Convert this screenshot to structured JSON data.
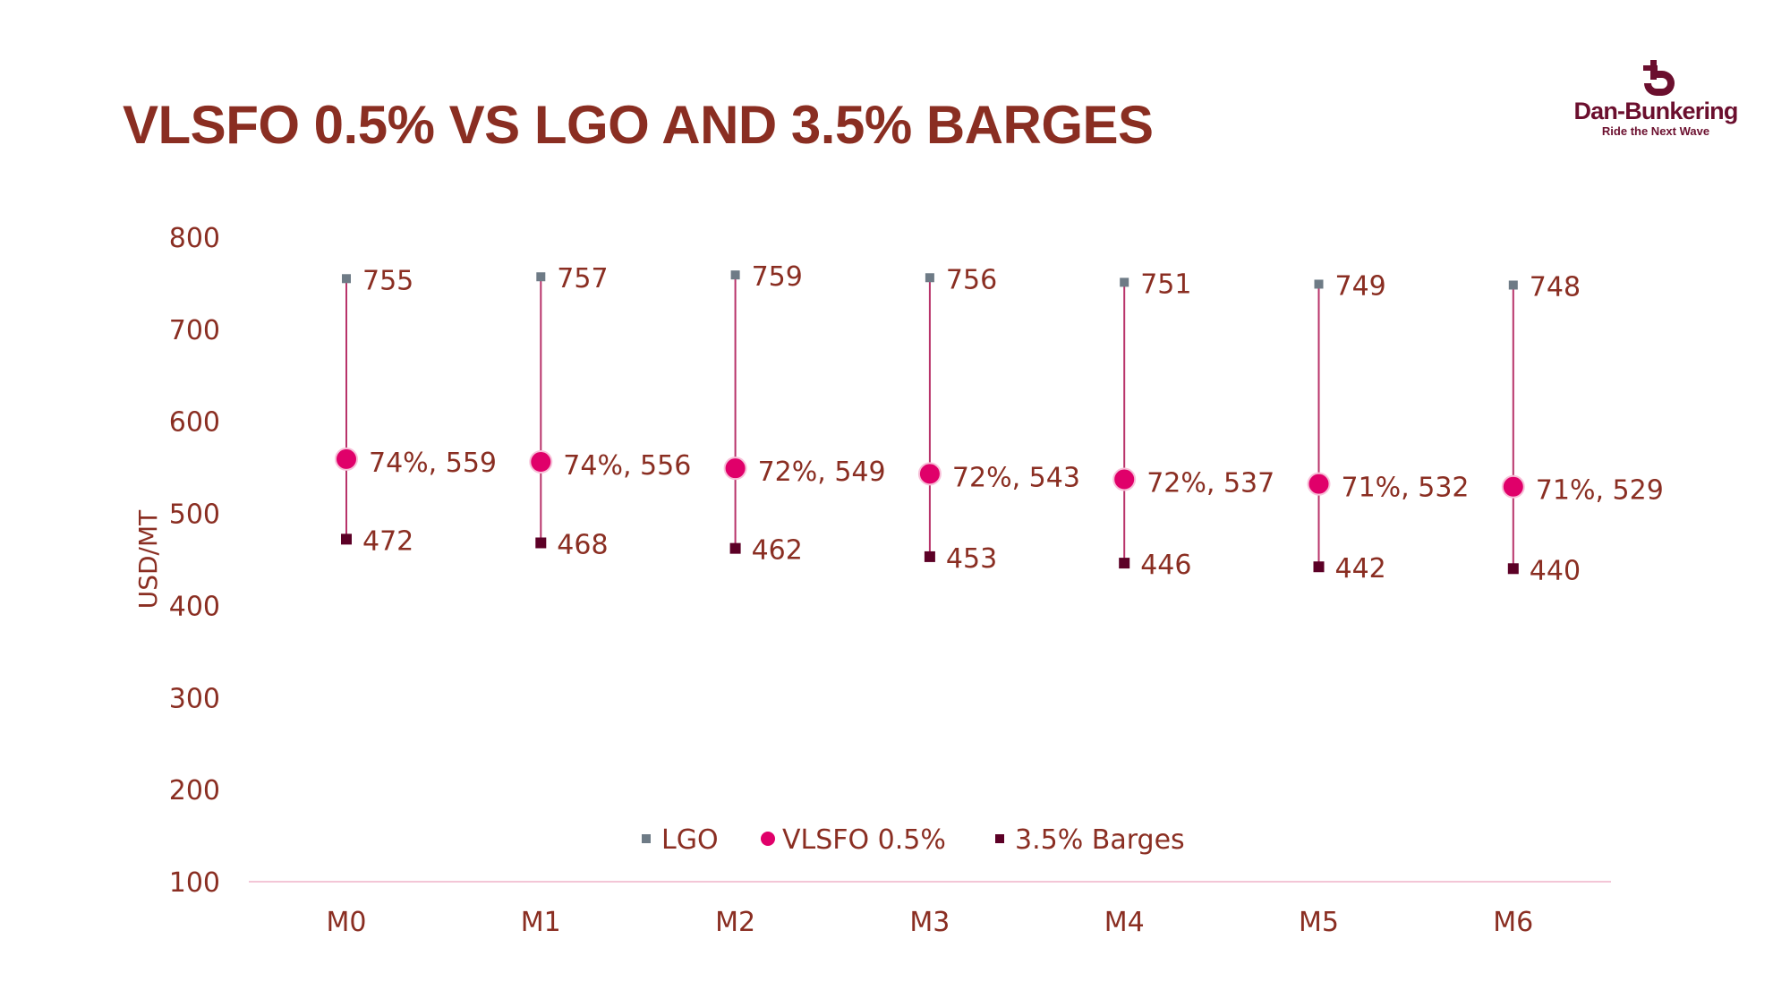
{
  "title": "VLSFO 0.5% VS LGO AND 3.5% BARGES",
  "logo": {
    "name": "Dan-Bunkering",
    "tagline": "Ride the Next Wave",
    "color": "#6b0f2e"
  },
  "chart_data": {
    "type": "scatter",
    "title": "",
    "ylabel": "USD/MT",
    "xlabel": "",
    "ylim": [
      100,
      800
    ],
    "yticks": [
      100,
      200,
      300,
      400,
      500,
      600,
      700,
      800
    ],
    "categories": [
      "M0",
      "M1",
      "M2",
      "M3",
      "M4",
      "M5",
      "M6"
    ],
    "grid": false,
    "legend_position": "bottom-center",
    "series": [
      {
        "name": "LGO",
        "color": "#6e7b86",
        "marker": "square",
        "values": [
          755,
          757,
          759,
          756,
          751,
          749,
          748
        ]
      },
      {
        "name": "VLSFO 0.5%",
        "color": "#e0006a",
        "marker": "circle",
        "values": [
          559,
          556,
          549,
          543,
          537,
          532,
          529
        ],
        "labels": [
          "74%, 559",
          "74%, 556",
          "72%, 549",
          "72%, 543",
          "72%, 537",
          "71%, 532",
          "71%, 529"
        ]
      },
      {
        "name": "3.5% Barges",
        "color": "#5c0026",
        "marker": "square",
        "values": [
          472,
          468,
          462,
          453,
          446,
          442,
          440
        ]
      }
    ],
    "connector_color": "#b8336a"
  }
}
